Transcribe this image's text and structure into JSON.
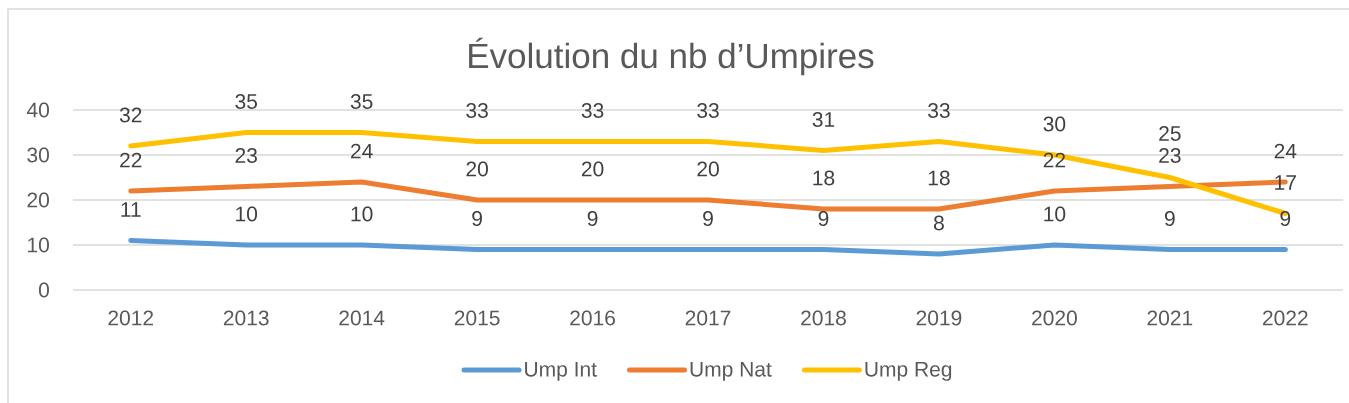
{
  "chart_data": {
    "type": "line",
    "title": "Évolution du nb d’Umpires",
    "categories": [
      "2012",
      "2013",
      "2014",
      "2015",
      "2016",
      "2017",
      "2018",
      "2019",
      "2020",
      "2021",
      "2022"
    ],
    "series": [
      {
        "name": "Ump Int",
        "color": "#5b9bd5",
        "values": [
          11,
          10,
          10,
          9,
          9,
          9,
          9,
          8,
          10,
          9,
          9
        ]
      },
      {
        "name": "Ump Nat",
        "color": "#ed7d31",
        "values": [
          22,
          23,
          24,
          20,
          20,
          20,
          18,
          18,
          22,
          23,
          24
        ]
      },
      {
        "name": "Ump Reg",
        "color": "#ffc000",
        "values": [
          32,
          35,
          35,
          33,
          33,
          33,
          31,
          33,
          30,
          25,
          17
        ]
      }
    ],
    "ylim": [
      0,
      40
    ],
    "yticks": [
      0,
      10,
      20,
      30,
      40
    ],
    "grid": "y",
    "legend": "bottom",
    "data_labels": true,
    "marker": "none",
    "line_style": "solid"
  }
}
